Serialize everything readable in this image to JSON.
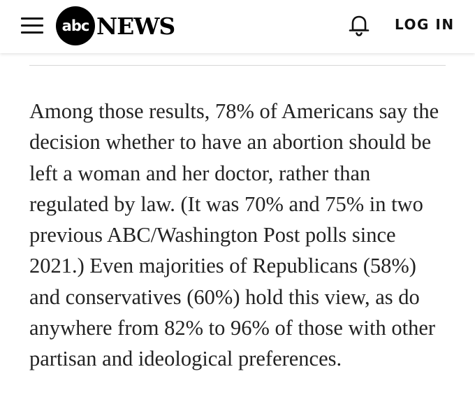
{
  "header": {
    "logo_badge": "abc",
    "logo_word": "NEWS",
    "login_label": "LOG IN",
    "menu_icon": "hamburger-menu-icon",
    "notification_icon": "bell-icon"
  },
  "article": {
    "paragraph": "Among those results, 78% of Americans say the decision whether to have an abortion should be left a woman and her doctor, rather than regulated by law. (It was 70% and 75% in two previous ABC/Washington Post polls since 2021.) Even majorities of Republicans (58%) and conservatives (60%) hold this view, as do anywhere from 82% to 96% of those with other partisan and ideological preferences."
  }
}
